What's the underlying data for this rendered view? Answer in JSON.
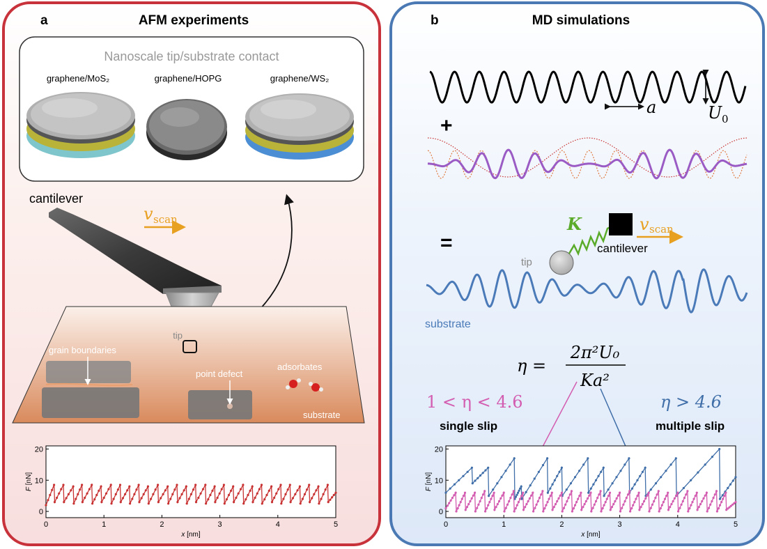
{
  "panel_a": {
    "letter": "a",
    "title": "AFM experiments",
    "contact_box_title": "Nanoscale tip/substrate contact",
    "materials": [
      "graphene/MoS₂",
      "graphene/HOPG",
      "graphene/WS₂"
    ],
    "cantilever_label": "cantilever",
    "vscan_v": "v",
    "vscan_sub": "scan",
    "tip_label": "tip",
    "grain_label": "grain boundaries",
    "point_defect_label": "point defect",
    "adsorbates_label": "adsorbates",
    "substrate_label": "substrate",
    "plot": {
      "ylabel_var": "F",
      "ylabel_unit": " [nN]",
      "xlabel_var": "x",
      "xlabel_unit": " [nm]",
      "yticks": [
        "0",
        "10",
        "20"
      ],
      "xticks": [
        "0",
        "1",
        "2",
        "3",
        "4",
        "5"
      ]
    }
  },
  "panel_b": {
    "letter": "b",
    "title": "MD simulations",
    "plus": "+",
    "equals": "=",
    "a_label": "a",
    "U0_label": "U",
    "U0_sub": "0",
    "K_label": "K",
    "vscan_v": "v",
    "vscan_sub": "scan",
    "cantilever_label": "cantilever",
    "tip_label": "tip",
    "substrate_label": "substrate",
    "eta_lhs": "η =",
    "eta_num": "2π²U₀",
    "eta_den": "Ka²",
    "single_cond": "1 < η < 4.6",
    "multi_cond": "η > 4.6",
    "single_label": "single slip",
    "multi_label": "multiple slip",
    "plot": {
      "ylabel_var": "F",
      "ylabel_unit": " [nN]",
      "xlabel_var": "x",
      "xlabel_unit": " [nm]",
      "yticks": [
        "0",
        "10",
        "20"
      ],
      "xticks": [
        "0",
        "1",
        "2",
        "3",
        "4",
        "5"
      ]
    }
  },
  "colors": {
    "panel_a_border": "#c8323a",
    "panel_b_border": "#4a79b4",
    "vscan": "#e8a020",
    "spring": "#5aab2a",
    "purple": "#9a5cc4",
    "orange_dotted": "#e07a40",
    "red_dotted": "#c83030",
    "substrate_blue": "#4a7ab8",
    "pink": "#d35db0",
    "afm_red": "#c83232",
    "md_blue": "#3f6ea8"
  },
  "chart_data": [
    {
      "type": "line",
      "title": "",
      "xlabel": "x [nm]",
      "ylabel": "F [nN]",
      "xlim": [
        0,
        5
      ],
      "ylim": [
        -2,
        21
      ],
      "series": [
        {
          "values_description_free": true,
          "x": [
            0,
            0.14,
            0.15,
            0.3,
            0.31,
            0.47,
            0.48,
            0.62,
            0.63,
            0.79,
            0.8,
            0.95,
            0.96,
            1.12,
            1.13,
            1.28,
            1.29,
            1.44,
            1.45,
            1.6,
            1.61,
            1.76,
            1.77,
            1.93,
            1.94,
            2.1,
            2.11,
            2.26,
            2.27,
            2.42,
            2.43,
            2.58,
            2.59,
            2.75,
            2.76,
            2.91,
            2.92,
            3.07,
            3.08,
            3.23,
            3.24,
            3.4,
            3.41,
            3.56,
            3.57,
            3.72,
            3.73,
            3.89,
            3.9,
            4.05,
            4.06,
            4.21,
            4.22,
            4.38,
            4.39,
            4.54,
            4.55,
            4.7,
            4.71,
            4.86,
            4.87,
            5
          ],
          "y": [
            2,
            8.5,
            3,
            8.5,
            3,
            8,
            2.5,
            8.5,
            3,
            8.5,
            2.5,
            8,
            3,
            8.5,
            2.5,
            8.5,
            3,
            8,
            2.5,
            8.5,
            3,
            8,
            2.5,
            8.5,
            3,
            8,
            2.5,
            8.5,
            3,
            8,
            2.5,
            8.5,
            3,
            8.5,
            2.5,
            8,
            3,
            8.5,
            2.5,
            8,
            3,
            8.5,
            2.5,
            8,
            3,
            8.5,
            2.5,
            8,
            3,
            8.5,
            2.5,
            8.5,
            3,
            8,
            2.5,
            8.5,
            3,
            8,
            2.5,
            8.5,
            3,
            6
          ]
        }
      ]
    },
    {
      "type": "line",
      "title": "",
      "xlabel": "x [nm]",
      "ylabel": "F [nN]",
      "xlim": [
        0,
        5
      ],
      "ylim": [
        -2,
        21
      ],
      "series": [
        {
          "x": [
            0,
            0.45,
            0.46,
            0.73,
            0.74,
            1.18,
            1.19,
            1.3,
            1.31,
            1.75,
            1.76,
            2.0,
            2.01,
            2.45,
            2.46,
            2.72,
            2.73,
            3.16,
            3.17,
            3.44,
            3.45,
            3.97,
            3.98,
            4.72,
            4.73,
            5
          ],
          "y": [
            6,
            14,
            9,
            14,
            5,
            17,
            4,
            8,
            4,
            17,
            6,
            14,
            5,
            17,
            6,
            14,
            5,
            17,
            6,
            14,
            5,
            17,
            5,
            20,
            4,
            11
          ]
        },
        {
          "x": [
            0,
            0.17,
            0.18,
            0.33,
            0.34,
            0.5,
            0.51,
            0.67,
            0.68,
            0.83,
            0.84,
            1.0,
            1.01,
            1.17,
            1.18,
            1.33,
            1.34,
            1.5,
            1.51,
            1.67,
            1.68,
            1.83,
            1.84,
            2.0,
            2.01,
            2.17,
            2.18,
            2.33,
            2.34,
            2.5,
            2.51,
            2.67,
            2.68,
            2.83,
            2.84,
            3.0,
            3.01,
            3.17,
            3.18,
            3.33,
            3.34,
            3.5,
            3.51,
            3.67,
            3.68,
            3.83,
            3.84,
            4.0,
            4.01,
            4.17,
            4.18,
            4.33,
            4.34,
            4.5,
            4.51,
            4.67,
            4.68,
            4.83,
            4.84,
            5
          ],
          "y": [
            1,
            6,
            0,
            6,
            0.5,
            6,
            0,
            6.5,
            0,
            6,
            0.5,
            6,
            0,
            6.5,
            0,
            6,
            0.5,
            6,
            0,
            6.5,
            0,
            6,
            0.5,
            6,
            0,
            6.5,
            0,
            6,
            0.5,
            6,
            0,
            6.5,
            0,
            6,
            0.5,
            6,
            0,
            6.5,
            0,
            6,
            0.5,
            6,
            0,
            6.5,
            0,
            6,
            0.5,
            6,
            0,
            6.5,
            0,
            6,
            0.5,
            6,
            0,
            6.5,
            0,
            6,
            0.5,
            3
          ]
        }
      ]
    }
  ]
}
